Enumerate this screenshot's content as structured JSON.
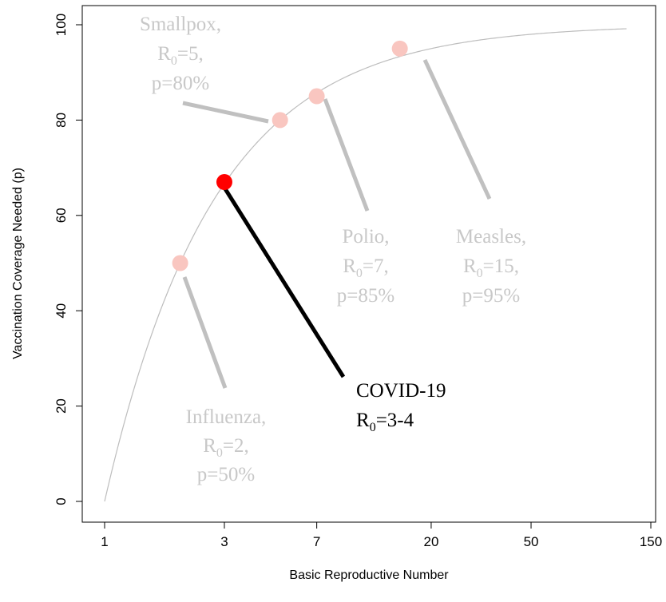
{
  "chart_data": {
    "type": "line",
    "xlabel": "Basic Reproductive Number",
    "ylabel": "Vaccination Coverage Needed (p)",
    "x_scale": "log",
    "xlim": [
      1,
      150
    ],
    "ylim": [
      0,
      100
    ],
    "x_ticks": [
      1,
      3,
      7,
      20,
      50,
      150
    ],
    "x_tick_labels": [
      "1",
      "3",
      "7",
      "20",
      "50",
      "150"
    ],
    "y_ticks": [
      0,
      20,
      40,
      60,
      80,
      100
    ],
    "y_tick_labels": [
      "0",
      "20",
      "40",
      "60",
      "80",
      "100"
    ],
    "grid": false,
    "legend": "none",
    "curve": {
      "formula": "p = 100 * (1 - 1/R0)",
      "x_range": [
        1,
        120
      ],
      "color": "#bdbdbd"
    },
    "points": [
      {
        "name": "Influenza",
        "x": 2,
        "y": 50,
        "lines": [
          "Influenza,",
          "R|0|=2,",
          "p=50%"
        ],
        "color": "#f9c6c0",
        "label_color": "#c8c8c8",
        "highlight": false
      },
      {
        "name": "Smallpox",
        "x": 5,
        "y": 80,
        "lines": [
          "Smallpox,",
          "R|0|=5,",
          "p=80%"
        ],
        "color": "#f9c6c0",
        "label_color": "#c8c8c8",
        "highlight": false
      },
      {
        "name": "Polio",
        "x": 7,
        "y": 85,
        "lines": [
          "Polio,",
          "R|0|=7,",
          "p=85%"
        ],
        "color": "#f9c6c0",
        "label_color": "#c8c8c8",
        "highlight": false
      },
      {
        "name": "Measles",
        "x": 15,
        "y": 95,
        "lines": [
          "Measles,",
          "R|0|=15,",
          "p=95%"
        ],
        "color": "#f9c6c0",
        "label_color": "#c8c8c8",
        "highlight": false
      },
      {
        "name": "COVID-19",
        "x": 3,
        "y": 67,
        "lines": [
          "COVID-19",
          "R|0|=3-4"
        ],
        "color": "#ff0000",
        "label_color": "#000000",
        "highlight": true
      }
    ]
  }
}
